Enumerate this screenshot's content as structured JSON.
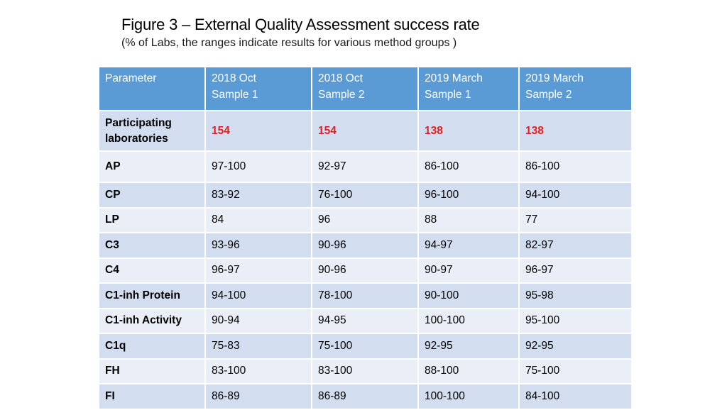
{
  "title": "Figure 3 – External Quality Assessment success rate",
  "subtitle": "(% of Labs, the ranges indicate results for various method groups )",
  "colors": {
    "header_bg": "#5b9bd5",
    "row_dark": "#d2deef",
    "row_light": "#eaeff7",
    "count_text": "#e41e1e"
  },
  "table": {
    "headers": [
      {
        "line1": "Parameter",
        "line2": ""
      },
      {
        "line1": "2018 Oct",
        "line2": "Sample 1"
      },
      {
        "line1": "2018 Oct",
        "line2": "Sample 2"
      },
      {
        "line1": "2019 March",
        "line2": "Sample 1"
      },
      {
        "line1": "2019 March",
        "line2": "Sample 2"
      }
    ],
    "participating": {
      "label_line1": "Participating",
      "label_line2": "laboratories",
      "values": [
        "154",
        "154",
        "138",
        "138"
      ]
    },
    "rows": [
      {
        "param": "AP",
        "values": [
          "97-100",
          "92-97",
          "86-100",
          "86-100"
        ]
      },
      {
        "param": "CP",
        "values": [
          "83-92",
          "76-100",
          "96-100",
          "94-100"
        ]
      },
      {
        "param": "LP",
        "values": [
          "84",
          "96",
          "88",
          "77"
        ]
      },
      {
        "param": "C3",
        "values": [
          "93-96",
          "90-96",
          "94-97",
          "82-97"
        ]
      },
      {
        "param": "C4",
        "values": [
          "96-97",
          "90-96",
          "90-97",
          "96-97"
        ]
      },
      {
        "param": "C1-inh Protein",
        "values": [
          "94-100",
          "78-100",
          "90-100",
          "95-98"
        ]
      },
      {
        "param": "C1-inh Activity",
        "values": [
          "90-94",
          "94-95",
          "100-100",
          "95-100"
        ]
      },
      {
        "param": "C1q",
        "values": [
          "75-83",
          "75-100",
          "92-95",
          "92-95"
        ]
      },
      {
        "param": "FH",
        "values": [
          "83-100",
          "83-100",
          "88-100",
          "75-100"
        ]
      },
      {
        "param": "FI",
        "values": [
          "86-89",
          "86-89",
          "100-100",
          "84-100"
        ]
      }
    ]
  }
}
